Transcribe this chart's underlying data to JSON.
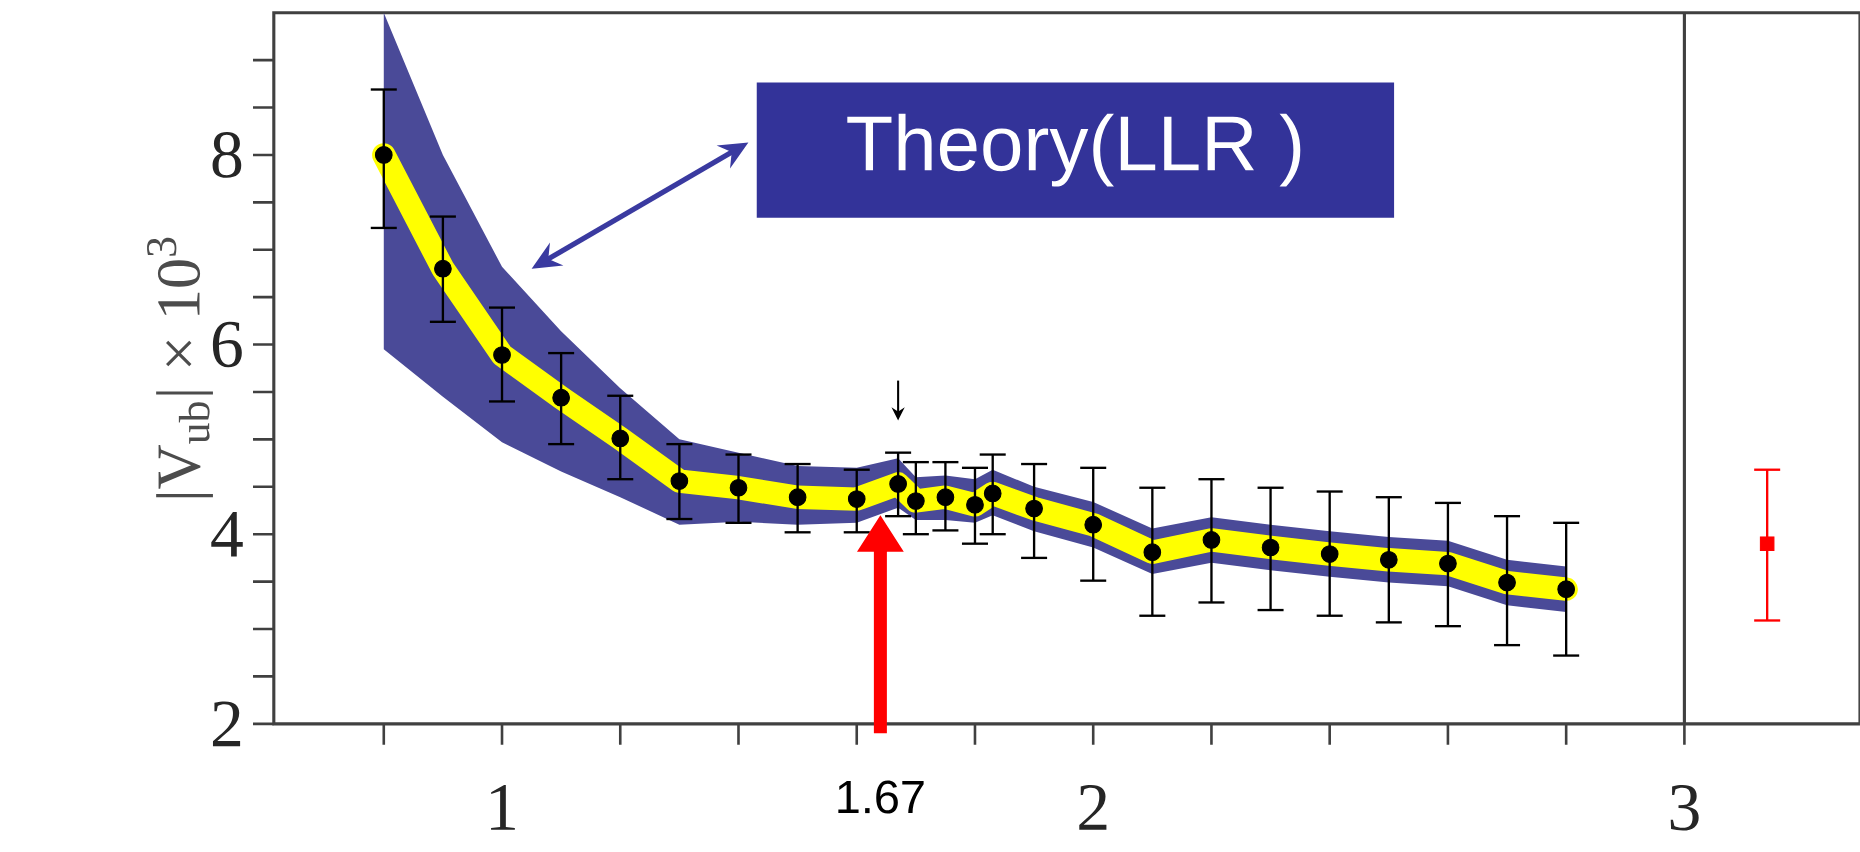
{
  "chart_data": {
    "type": "scatter",
    "ylabel": "|V$_{ub}$| × 10$^{3}$",
    "xlim": [
      0.614,
      3.297
    ],
    "ylim": [
      2,
      9.5
    ],
    "xticks": [
      {
        "value": 0.8,
        "label": null
      },
      1,
      {
        "value": 1.2,
        "label": null
      },
      {
        "value": 1.4,
        "label": null
      },
      {
        "value": 1.6,
        "label": null
      },
      {
        "value": 1.8,
        "label": null
      },
      2,
      {
        "value": 2.2,
        "label": null
      },
      {
        "value": 2.4,
        "label": null
      },
      {
        "value": 2.6,
        "label": null
      },
      {
        "value": 2.8,
        "label": null
      },
      3
    ],
    "yticks": [
      2,
      {
        "value": 2.5,
        "label": null
      },
      {
        "value": 3,
        "label": null
      },
      {
        "value": 3.5,
        "label": null
      },
      4,
      {
        "value": 4.5,
        "label": null
      },
      {
        "value": 5,
        "label": null
      },
      {
        "value": 5.5,
        "label": null
      },
      6,
      {
        "value": 6.5,
        "label": null
      },
      {
        "value": 7,
        "label": null
      },
      {
        "value": 7.5,
        "label": null
      },
      8,
      {
        "value": 8.5,
        "label": null
      },
      {
        "value": 9,
        "label": null
      }
    ],
    "series": [
      {
        "type": "line",
        "color": "#ffff00",
        "marker": "none",
        "x": [
          0.8,
          0.9,
          1.0,
          1.1,
          1.2,
          1.3,
          1.4,
          1.5,
          1.6,
          1.67,
          1.7,
          1.75,
          1.8,
          1.83,
          1.9,
          2.0,
          2.1,
          2.2,
          2.3,
          2.4,
          2.5,
          2.6,
          2.7,
          2.8
        ],
        "values": [
          8.0,
          6.8,
          5.89,
          5.44,
          5.01,
          4.56,
          4.49,
          4.39,
          4.37,
          4.53,
          4.35,
          4.39,
          4.31,
          4.43,
          4.27,
          4.1,
          3.81,
          3.94,
          3.86,
          3.79,
          3.73,
          3.69,
          3.49,
          3.42
        ],
        "lower": [
          5.95,
          5.45,
          4.97,
          4.66,
          4.39,
          4.1,
          4.13,
          4.1,
          4.12,
          4.28,
          4.15,
          4.15,
          4.12,
          4.2,
          4.03,
          3.86,
          3.58,
          3.7,
          3.62,
          3.55,
          3.49,
          3.45,
          3.25,
          3.18
        ],
        "upper": [
          9.5,
          8.0,
          6.82,
          6.14,
          5.54,
          5.0,
          4.86,
          4.72,
          4.7,
          4.8,
          4.6,
          4.62,
          4.58,
          4.68,
          4.5,
          4.34,
          4.06,
          4.18,
          4.1,
          4.03,
          3.97,
          3.93,
          3.73,
          3.66
        ]
      },
      {
        "color": "#000000",
        "marker": "circle",
        "x": [
          0.8,
          0.9,
          1.0,
          1.1,
          1.2,
          1.3,
          1.4,
          1.5,
          1.6,
          1.67,
          1.7,
          1.75,
          1.8,
          1.83,
          1.9,
          2.0,
          2.1,
          2.2,
          2.3,
          2.4,
          2.5,
          2.6,
          2.7,
          2.8
        ],
        "values": [
          8.0,
          6.8,
          5.89,
          5.44,
          5.01,
          4.56,
          4.49,
          4.39,
          4.37,
          4.53,
          4.35,
          4.39,
          4.31,
          4.43,
          4.27,
          4.1,
          3.81,
          3.94,
          3.86,
          3.79,
          3.73,
          3.69,
          3.49,
          3.42
        ],
        "errors": [
          [
            7.23,
            8.69
          ],
          [
            6.24,
            7.35
          ],
          [
            5.4,
            6.39
          ],
          [
            4.95,
            5.91
          ],
          [
            4.58,
            5.46
          ],
          [
            4.16,
            4.95
          ],
          [
            4.12,
            4.84
          ],
          [
            4.02,
            4.74
          ],
          [
            4.02,
            4.68
          ],
          [
            4.19,
            4.86
          ],
          [
            4.0,
            4.76
          ],
          [
            4.04,
            4.76
          ],
          [
            3.9,
            4.7
          ],
          [
            4.0,
            4.84
          ],
          [
            3.75,
            4.74
          ],
          [
            3.51,
            4.7
          ],
          [
            3.14,
            4.49
          ],
          [
            3.28,
            4.58
          ],
          [
            3.2,
            4.49
          ],
          [
            3.14,
            4.45
          ],
          [
            3.07,
            4.39
          ],
          [
            3.03,
            4.33
          ],
          [
            2.83,
            4.19
          ],
          [
            2.72,
            4.12
          ]
        ]
      },
      {
        "color": "#ff0000",
        "marker": "square",
        "x": [
          3.14
        ],
        "values": [
          3.9
        ],
        "errors": [
          [
            3.09,
            4.68
          ]
        ]
      }
    ],
    "ref_lines": [
      {
        "axis": "x",
        "value": 3,
        "color": "#404040"
      }
    ],
    "annotations": [
      "Theory(LLR )",
      "1.67"
    ],
    "tick_labels": true
  }
}
